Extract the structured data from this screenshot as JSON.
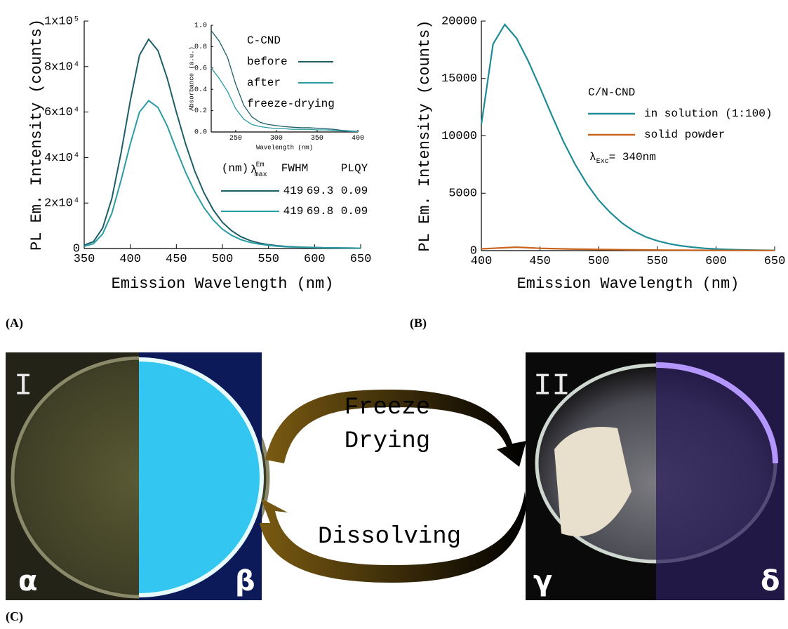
{
  "labels": {
    "a": "(A)",
    "b": "(B)",
    "c": "(C)"
  },
  "chart_data": [
    {
      "type": "line",
      "x": [
        350,
        360,
        370,
        380,
        390,
        400,
        410,
        420,
        430,
        440,
        450,
        460,
        470,
        480,
        490,
        500,
        510,
        520,
        530,
        540,
        550,
        560,
        570,
        580,
        590,
        600,
        610,
        620,
        630,
        640,
        650
      ],
      "xlim": [
        350,
        650
      ],
      "xticks": [
        350,
        400,
        450,
        500,
        550,
        600,
        650
      ],
      "ylim": [
        0,
        100000
      ],
      "yticks": [
        0,
        {
          "value": 20000,
          "label": "2x10⁴"
        },
        {
          "value": 40000,
          "label": "4x10⁴"
        },
        {
          "value": 60000,
          "label": "6x10⁴"
        },
        {
          "value": 80000,
          "label": "8x10⁴"
        },
        {
          "value": 100000,
          "label": "1x10⁵"
        }
      ],
      "xlabel": "Emission Wavelength (nm)",
      "ylabel": "PL Em. Intensity (counts)",
      "legend_title": "C-CND",
      "legend_note": "freeze-drying",
      "series": [
        {
          "name": "before",
          "color": "#1d5e68",
          "values": [
            1500,
            3000,
            9000,
            22000,
            42000,
            65000,
            85000,
            92000,
            87000,
            75000,
            60000,
            46000,
            34000,
            24500,
            17000,
            11500,
            7800,
            5200,
            3500,
            2400,
            1700,
            1200,
            900,
            700,
            550,
            450,
            350,
            300,
            250,
            200,
            150
          ]
        },
        {
          "name": "after",
          "color": "#2a9ca3",
          "values": [
            1000,
            2100,
            6400,
            15500,
            30000,
            46000,
            60000,
            65000,
            62000,
            54000,
            43500,
            33500,
            25000,
            18000,
            12500,
            8500,
            5800,
            3900,
            2700,
            1900,
            1400,
            1000,
            750,
            600,
            480,
            400,
            320,
            270,
            220,
            180,
            140
          ]
        }
      ],
      "table": {
        "header": [
          "(nm)",
          "λ",
          "Em",
          "max",
          "FWHM",
          "PLQY"
        ],
        "rows": [
          [
            419,
            69.3,
            0.09
          ],
          [
            419,
            69.8,
            0.09
          ]
        ]
      }
    },
    {
      "type": "line",
      "x": [
        220,
        230,
        240,
        250,
        260,
        270,
        280,
        290,
        300,
        310,
        320,
        330,
        340,
        350,
        360,
        370,
        380,
        390,
        400
      ],
      "xlim": [
        220,
        400
      ],
      "xticks": [
        250,
        300,
        350,
        400
      ],
      "ylim": [
        0,
        1
      ],
      "yticks": [
        {
          "value": 0,
          "label": "0.0"
        },
        0.2,
        0.4,
        0.6,
        0.8,
        {
          "value": 1,
          "label": "1.0"
        }
      ],
      "xlabel": "Wavelength (nm)",
      "ylabel": "Absorbance (a.u.)",
      "series": [
        {
          "name": "before",
          "color": "#1d5e68",
          "values": [
            0.95,
            0.85,
            0.7,
            0.45,
            0.25,
            0.14,
            0.09,
            0.07,
            0.06,
            0.05,
            0.045,
            0.04,
            0.04,
            0.035,
            0.03,
            0.025,
            0.015,
            0.01,
            0.005
          ]
        },
        {
          "name": "after",
          "color": "#2a9ca3",
          "values": [
            0.6,
            0.5,
            0.38,
            0.22,
            0.12,
            0.07,
            0.05,
            0.04,
            0.03,
            0.03,
            0.025,
            0.025,
            0.025,
            0.02,
            0.02,
            0.015,
            0.01,
            0.005,
            0.003
          ]
        }
      ]
    },
    {
      "type": "line",
      "x": [
        400,
        410,
        420,
        430,
        440,
        450,
        460,
        470,
        480,
        490,
        500,
        510,
        520,
        530,
        540,
        550,
        560,
        570,
        580,
        590,
        600,
        610,
        620,
        630,
        640,
        650
      ],
      "xlim": [
        400,
        650
      ],
      "xticks": [
        400,
        450,
        500,
        550,
        600,
        650
      ],
      "ylim": [
        0,
        20000
      ],
      "yticks": [
        0,
        5000,
        10000,
        15000,
        20000
      ],
      "xlabel": "Emission Wavelength (nm)",
      "ylabel": "PL Em. Intensity (counts)",
      "legend_title": "C/N-CND",
      "legend_note": [
        "λ",
        "Exc",
        "= 340nm"
      ],
      "series": [
        {
          "name": "in solution (1:100)",
          "color": "#1e8c96",
          "values": [
            11000,
            18000,
            19700,
            18500,
            16500,
            14200,
            11800,
            9500,
            7500,
            5800,
            4400,
            3300,
            2400,
            1700,
            1200,
            850,
            600,
            420,
            300,
            200,
            140,
            100,
            70,
            50,
            30,
            20
          ]
        },
        {
          "name": "solid powder",
          "color": "#c8641e",
          "values": [
            150,
            200,
            250,
            300,
            250,
            200,
            180,
            150,
            130,
            120,
            100,
            90,
            80,
            70,
            60,
            50,
            40,
            40,
            30,
            30,
            20,
            20,
            20,
            10,
            10,
            10
          ]
        }
      ]
    }
  ],
  "cycle": {
    "top": [
      "Freeze",
      "Drying"
    ],
    "bottom": "Dissolving"
  },
  "photos": {
    "left": {
      "tag": "I",
      "a": "α",
      "b": "β"
    },
    "right": {
      "tag": "II",
      "a": "γ",
      "b": "δ"
    }
  }
}
